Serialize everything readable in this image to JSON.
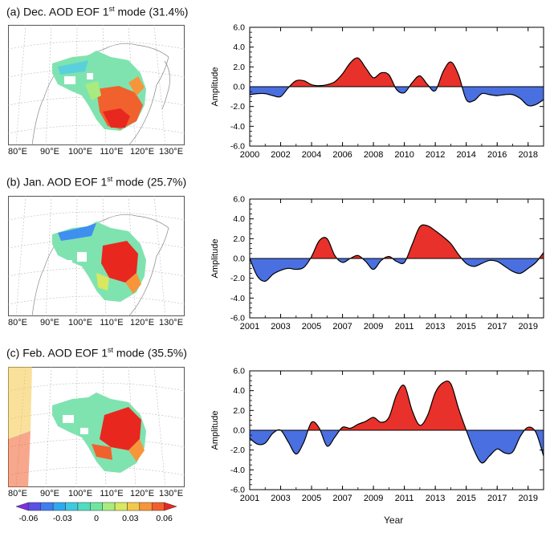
{
  "panels": [
    {
      "title_prefix": "(a) Dec. AOD EOF 1",
      "title_sup": "st",
      "title_suffix": " mode (31.4%)",
      "lon_labels": [
        "80°E",
        "90°E",
        "100°E",
        "110°E",
        "120°E",
        "130°E"
      ]
    },
    {
      "title_prefix": "(b) Jan. AOD EOF 1",
      "title_sup": "st",
      "title_suffix": " mode (25.7%)",
      "lon_labels": [
        "80°E",
        "90°E",
        "100°E",
        "110°E",
        "120°E",
        "130°E"
      ]
    },
    {
      "title_prefix": "(c) Feb. AOD EOF 1",
      "title_sup": "st",
      "title_suffix": " mode (35.5%)",
      "lon_labels": [
        "80°E",
        "90°E",
        "100°E",
        "110°E",
        "120°E",
        "130°E"
      ]
    }
  ],
  "colorbar": {
    "labels": [
      "-0.06",
      "-0.03",
      "0",
      "0.03",
      "0.06"
    ],
    "colors": [
      "#7b2fe0",
      "#5a4fe6",
      "#3f7ef0",
      "#2fa8f0",
      "#3fc9e0",
      "#4fdcc0",
      "#6fe6a0",
      "#a8ec80",
      "#d8e860",
      "#f4c94a",
      "#f7953a",
      "#f1612e",
      "#e8281f"
    ],
    "range": [
      -0.06,
      0.06
    ]
  },
  "colors": {
    "positive": "#e8312a",
    "negative": "#4a6fe0"
  },
  "chart_data": [
    {
      "type": "area",
      "title": "",
      "xlabel": "",
      "ylabel": "Amplitude",
      "xlim": [
        2000,
        2019
      ],
      "ylim": [
        -6,
        6
      ],
      "xticks": [
        2000,
        2002,
        2004,
        2006,
        2008,
        2010,
        2012,
        2014,
        2016,
        2018
      ],
      "xtick_labels": [
        "2000",
        "2002",
        "2004",
        "2006",
        "2008",
        "2010",
        "2012",
        "2014",
        "2016",
        "2018"
      ],
      "yticks": [
        -6,
        -4,
        -2,
        0,
        2,
        4,
        6
      ],
      "ytick_labels": [
        "-6.0",
        "-4.0",
        "-2.0",
        "0.0",
        "2.0",
        "4.0",
        "6.0"
      ],
      "x": [
        2000,
        2000.5,
        2001,
        2001.5,
        2002,
        2002.5,
        2003,
        2003.5,
        2004,
        2004.5,
        2005,
        2005.5,
        2006,
        2006.5,
        2007,
        2007.5,
        2008,
        2008.5,
        2009,
        2009.5,
        2010,
        2010.5,
        2011,
        2011.5,
        2012,
        2012.5,
        2013,
        2013.5,
        2014,
        2014.5,
        2015,
        2015.5,
        2016,
        2016.5,
        2017,
        2017.5,
        2018,
        2018.5,
        2019
      ],
      "values": [
        -0.8,
        -0.7,
        -0.7,
        -0.9,
        -1.0,
        -0.1,
        0.6,
        0.6,
        0.2,
        0.1,
        0.2,
        0.5,
        1.3,
        2.4,
        2.9,
        1.9,
        0.9,
        1.4,
        1.2,
        -0.3,
        -0.6,
        0.4,
        1.1,
        0.2,
        -0.4,
        1.5,
        2.5,
        1.2,
        -1.3,
        -1.4,
        -0.7,
        -0.8,
        -0.9,
        -0.8,
        -0.8,
        -1.2,
        -1.9,
        -1.8,
        -1.3
      ]
    },
    {
      "type": "area",
      "title": "",
      "xlabel": "",
      "ylabel": "Amplitude",
      "xlim": [
        2001,
        2020
      ],
      "ylim": [
        -6,
        6
      ],
      "xticks": [
        2001,
        2003,
        2005,
        2007,
        2009,
        2011,
        2013,
        2015,
        2017,
        2019
      ],
      "xtick_labels": [
        "2001",
        "2003",
        "2005",
        "2007",
        "2009",
        "2011",
        "2013",
        "2015",
        "2017",
        "2019"
      ],
      "yticks": [
        -6,
        -4,
        -2,
        0,
        2,
        4,
        6
      ],
      "ytick_labels": [
        "-6.0",
        "-4.0",
        "-2.0",
        "0.0",
        "2.0",
        "4.0",
        "6.0"
      ],
      "x": [
        2001,
        2001.5,
        2002,
        2002.5,
        2003,
        2003.5,
        2004,
        2004.5,
        2005,
        2005.5,
        2006,
        2006.5,
        2007,
        2007.5,
        2008,
        2008.5,
        2009,
        2009.5,
        2010,
        2010.5,
        2011,
        2011.5,
        2012,
        2012.5,
        2013,
        2013.5,
        2014,
        2014.5,
        2015,
        2015.5,
        2016,
        2016.5,
        2017,
        2017.5,
        2018,
        2018.5,
        2019,
        2019.5,
        2020
      ],
      "values": [
        0.0,
        -1.8,
        -2.3,
        -1.6,
        -1.2,
        -1.0,
        -1.1,
        -0.9,
        0.2,
        1.8,
        2.0,
        0.3,
        -0.4,
        0.0,
        0.3,
        -0.3,
        -1.1,
        -0.2,
        0.2,
        -0.3,
        -0.4,
        1.4,
        3.2,
        3.3,
        2.8,
        2.2,
        1.5,
        0.4,
        -0.5,
        -0.8,
        -0.5,
        -0.2,
        -0.3,
        -0.8,
        -1.3,
        -1.5,
        -1.0,
        -0.4,
        0.6
      ]
    },
    {
      "type": "area",
      "title": "",
      "xlabel": "Year",
      "ylabel": "Amplitude",
      "xlim": [
        2001,
        2020
      ],
      "ylim": [
        -6,
        6
      ],
      "xticks": [
        2001,
        2003,
        2005,
        2007,
        2009,
        2011,
        2013,
        2015,
        2017,
        2019
      ],
      "xtick_labels": [
        "2001",
        "2003",
        "2005",
        "2007",
        "2009",
        "2011",
        "2013",
        "2015",
        "2017",
        "2019"
      ],
      "yticks": [
        -6,
        -4,
        -2,
        0,
        2,
        4,
        6
      ],
      "ytick_labels": [
        "-6.0",
        "-4.0",
        "-2.0",
        "0.0",
        "2.0",
        "4.0",
        "6.0"
      ],
      "x": [
        2001,
        2001.5,
        2002,
        2002.5,
        2003,
        2003.5,
        2004,
        2004.5,
        2005,
        2005.5,
        2006,
        2006.5,
        2007,
        2007.5,
        2008,
        2008.5,
        2009,
        2009.5,
        2010,
        2010.5,
        2011,
        2011.5,
        2012,
        2012.5,
        2013,
        2013.5,
        2014,
        2014.5,
        2015,
        2015.5,
        2016,
        2016.5,
        2017,
        2017.5,
        2018,
        2018.5,
        2019,
        2019.5,
        2020
      ],
      "values": [
        -0.8,
        -1.4,
        -1.3,
        -0.3,
        0.0,
        -1.2,
        -2.4,
        -1.2,
        0.8,
        0.2,
        -1.6,
        -0.7,
        0.3,
        0.2,
        0.6,
        0.9,
        1.3,
        0.8,
        1.3,
        3.6,
        4.5,
        2.0,
        0.5,
        1.5,
        3.8,
        4.8,
        4.7,
        2.2,
        0.0,
        -2.0,
        -3.3,
        -2.6,
        -1.9,
        -2.3,
        -2.2,
        -0.6,
        0.3,
        -0.2,
        -2.6
      ]
    }
  ]
}
